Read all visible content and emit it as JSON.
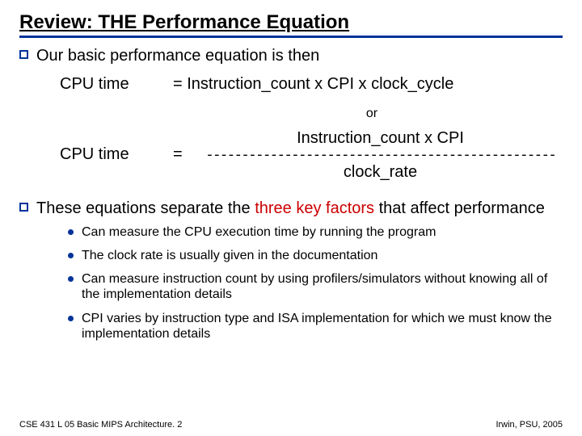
{
  "title": "Review:  THE Performance Equation",
  "colors": {
    "accent": "#003399",
    "highlight": "#cc0000",
    "background": "#ffffff",
    "text": "#000000"
  },
  "typography": {
    "title_fontsize": 24,
    "body_fontsize": 20,
    "sub_fontsize": 16,
    "footer_fontsize": 11,
    "font_family": "Arial"
  },
  "bullet1": "Our basic performance equation is then",
  "eq1": {
    "lhs": "CPU time",
    "rhs": "=  Instruction_count  x  CPI  x   clock_cycle"
  },
  "or_label": "or",
  "eq2": {
    "lhs": "CPU time",
    "eq_sign": "=",
    "numerator": "Instruction_count    x      CPI",
    "dashes": "-------------------------------------------------",
    "denominator": "clock_rate"
  },
  "bullet2": {
    "pre": "These equations separate the ",
    "highlight": "three key factors",
    "post": " that affect performance"
  },
  "sub_items": [
    "Can measure the CPU execution time by running the program",
    "The clock rate is usually given in the documentation",
    "Can measure instruction count by using profilers/simulators without knowing all of the implementation details",
    "CPI varies by instruction type and ISA implementation for which we must know the implementation details"
  ],
  "footer": {
    "left": "CSE 431  L 05 Basic MIPS Architecture. 2",
    "right": "Irwin, PSU, 2005"
  }
}
